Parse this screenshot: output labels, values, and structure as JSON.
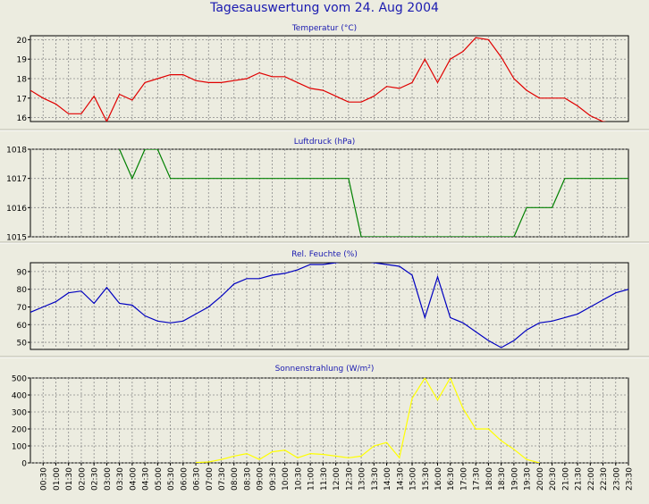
{
  "page": {
    "title": "Tagesauswertung vom 24. Aug 2004"
  },
  "chart_data": [
    {
      "type": "line",
      "title": "Temperatur (°C)",
      "ylim": [
        15.8,
        20.2
      ],
      "yticks": [
        16,
        17,
        18,
        19,
        20
      ],
      "color": "#e00000",
      "x_hours": [
        0.0,
        0.5,
        1.0,
        1.5,
        2.0,
        2.5,
        3.0,
        3.5,
        4.0,
        4.5,
        5.0,
        5.5,
        6.0,
        6.5,
        7.0,
        7.5,
        8.0,
        8.5,
        9.0,
        9.5,
        10.0,
        10.5,
        11.0,
        11.5,
        12.0,
        12.5,
        13.0,
        13.5,
        14.0,
        14.5,
        15.0,
        15.5,
        16.0,
        16.5,
        17.0,
        17.5,
        18.0,
        18.5,
        19.0,
        19.5,
        20.0,
        20.5,
        21.0,
        21.5,
        22.0,
        22.5,
        23.0
      ],
      "values": [
        17.4,
        17.0,
        16.7,
        16.2,
        16.2,
        17.1,
        15.8,
        17.2,
        16.9,
        17.8,
        18.0,
        18.2,
        18.2,
        17.9,
        17.8,
        17.8,
        17.9,
        18.0,
        18.3,
        18.1,
        18.1,
        17.8,
        17.5,
        17.4,
        17.1,
        16.8,
        16.8,
        17.1,
        17.6,
        17.5,
        17.8,
        19.0,
        17.8,
        19.0,
        19.4,
        20.1,
        20.0,
        19.1,
        18.0,
        17.4,
        17.0,
        17.0,
        17.0,
        16.6,
        16.1,
        15.8,
        15.7
      ]
    },
    {
      "type": "line",
      "title": "Luftdruck (hPa)",
      "ylim": [
        1015,
        1018
      ],
      "yticks": [
        1015,
        1016,
        1017,
        1018
      ],
      "color": "#008000",
      "x_hours": [
        3.5,
        4.0,
        4.5,
        5.0,
        5.5,
        6.0,
        12.5,
        13.0,
        19.0,
        19.5,
        20.0,
        20.5,
        21.0,
        21.5,
        22.0,
        22.5,
        23.0,
        23.5
      ],
      "values": [
        1018,
        1017,
        1018,
        1018,
        1017,
        1017,
        1017,
        1015,
        1015,
        1016,
        1016,
        1016,
        1017,
        1017,
        1017,
        1017,
        1017,
        1017
      ]
    },
    {
      "type": "line",
      "title": "Rel. Feuchte (%)",
      "ylim": [
        46,
        95
      ],
      "yticks": [
        50,
        60,
        70,
        80,
        90
      ],
      "color": "#0000c0",
      "x_hours": [
        0.0,
        0.5,
        1.0,
        1.5,
        2.0,
        2.5,
        3.0,
        3.5,
        4.0,
        4.5,
        5.0,
        5.5,
        6.0,
        6.5,
        7.0,
        7.5,
        8.0,
        8.5,
        9.0,
        9.5,
        10.0,
        10.5,
        11.0,
        11.5,
        12.0,
        12.5,
        13.0,
        13.5,
        14.0,
        14.5,
        15.0,
        15.5,
        16.0,
        16.5,
        17.0,
        17.5,
        18.0,
        18.5,
        19.0,
        19.5,
        20.0,
        20.5,
        21.0,
        21.5,
        22.0,
        22.5,
        23.0,
        23.5
      ],
      "values": [
        67,
        70,
        73,
        78,
        79,
        72,
        81,
        72,
        71,
        65,
        62,
        61,
        62,
        66,
        70,
        76,
        83,
        86,
        86,
        88,
        89,
        91,
        94,
        94,
        95,
        96,
        96,
        95,
        94,
        93,
        88,
        64,
        87,
        64,
        61,
        56,
        51,
        47,
        51,
        57,
        61,
        62,
        64,
        66,
        70,
        74,
        78,
        80
      ]
    },
    {
      "type": "line",
      "title": "Sonnenstrahlung (W/m²)",
      "ylim": [
        0,
        500
      ],
      "yticks": [
        0,
        100,
        200,
        300,
        400,
        500
      ],
      "color": "#ffff00",
      "x_hours": [
        6.5,
        7.0,
        7.5,
        8.0,
        8.5,
        9.0,
        9.5,
        10.0,
        10.5,
        11.0,
        11.5,
        12.0,
        12.5,
        13.0,
        13.5,
        14.0,
        14.5,
        15.0,
        15.5,
        16.0,
        16.5,
        17.0,
        17.5,
        18.0,
        18.5,
        19.0,
        19.5,
        20.0
      ],
      "values": [
        2,
        5,
        20,
        40,
        55,
        20,
        65,
        75,
        30,
        55,
        50,
        40,
        30,
        40,
        100,
        120,
        30,
        380,
        500,
        370,
        500,
        320,
        200,
        200,
        130,
        80,
        20,
        0
      ]
    }
  ],
  "x_axis": {
    "tick_labels": [
      "00:30",
      "01:00",
      "01:30",
      "02:00",
      "02:30",
      "03:00",
      "03:30",
      "04:00",
      "04:30",
      "05:00",
      "05:30",
      "06:00",
      "06:30",
      "07:00",
      "07:30",
      "08:00",
      "08:30",
      "09:00",
      "09:30",
      "10:00",
      "10:30",
      "11:00",
      "11:30",
      "12:00",
      "12:30",
      "13:00",
      "13:30",
      "14:00",
      "14:30",
      "15:00",
      "15:30",
      "16:00",
      "16:30",
      "17:00",
      "17:30",
      "18:00",
      "18:30",
      "19:00",
      "19:30",
      "20:00",
      "20:30",
      "21:00",
      "21:30",
      "22:00",
      "22:30",
      "23:00",
      "23:30"
    ]
  }
}
